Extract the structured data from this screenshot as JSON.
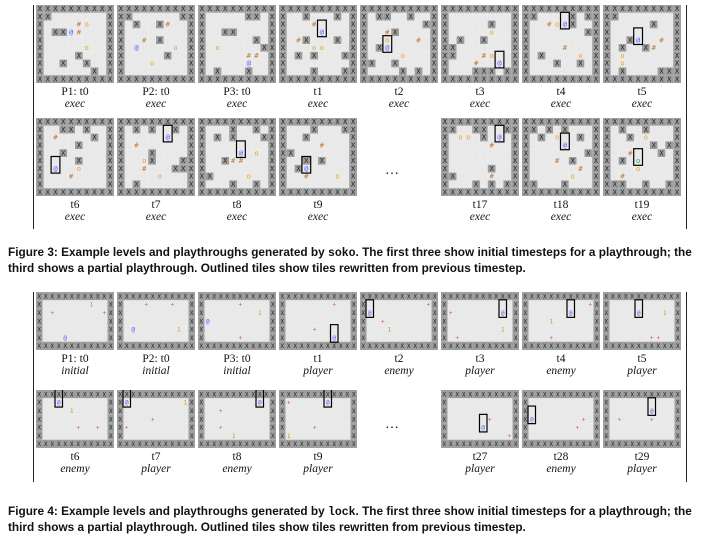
{
  "figures": [
    {
      "id": "fig3",
      "panels": [
        {
          "t": "P1: t0",
          "m": "exec"
        },
        {
          "t": "P2: t0",
          "m": "exec"
        },
        {
          "t": "P3: t0",
          "m": "exec"
        },
        {
          "t": "t1",
          "m": "exec"
        },
        {
          "t": "t2",
          "m": "exec"
        },
        {
          "t": "t3",
          "m": "exec"
        },
        {
          "t": "t4",
          "m": "exec"
        },
        {
          "t": "t5",
          "m": "exec"
        },
        {
          "t": "t6",
          "m": "exec"
        },
        {
          "t": "t7",
          "m": "exec"
        },
        {
          "t": "t8",
          "m": "exec"
        },
        {
          "t": "t9",
          "m": "exec"
        },
        {
          "t": "t17",
          "m": "exec"
        },
        {
          "t": "t18",
          "m": "exec"
        },
        {
          "t": "t19",
          "m": "exec"
        }
      ],
      "ellipsis": "…",
      "caption": {
        "label": "Figure 3:",
        "before": " Example levels and playthroughs generated by ",
        "code": "soko",
        "after": ". The first three show initial timesteps for a playthrough; the third shows a partial playthrough. Outlined tiles show tiles rewritten from previous timestep."
      }
    },
    {
      "id": "fig4",
      "panels": [
        {
          "t": "P1: t0",
          "m": "initial"
        },
        {
          "t": "P2: t0",
          "m": "initial"
        },
        {
          "t": "P3: t0",
          "m": "initial"
        },
        {
          "t": "t1",
          "m": "player"
        },
        {
          "t": "t2",
          "m": "enemy"
        },
        {
          "t": "t3",
          "m": "player"
        },
        {
          "t": "t4",
          "m": "enemy"
        },
        {
          "t": "t5",
          "m": "player"
        },
        {
          "t": "t6",
          "m": "enemy"
        },
        {
          "t": "t7",
          "m": "player"
        },
        {
          "t": "t8",
          "m": "enemy"
        },
        {
          "t": "t9",
          "m": "player"
        },
        {
          "t": "t27",
          "m": "player"
        },
        {
          "t": "t28",
          "m": "enemy"
        },
        {
          "t": "t29",
          "m": "player"
        }
      ],
      "ellipsis": "…",
      "caption": {
        "label": "Figure 4:",
        "before": " Example levels and playthroughs generated by ",
        "code": "lock",
        "after": ". The first three show initial timesteps for a playthrough; the third shows a partial playthrough. Outlined tiles show tiles rewritten from previous timestep."
      }
    }
  ],
  "tile_glyphs": {
    "wall": "X",
    "crate": "#",
    "goal": "o",
    "player": "@",
    "placed": "o",
    "key": "+",
    "enemy": "1"
  },
  "colors": {
    "wall_bg": "#9e9e9e",
    "floor_bg": "#e9e9e9",
    "crate": "#c07a3a",
    "goal": "#f0a020",
    "player": "#4a5cff",
    "placed": "#22aa33",
    "key": "#e05050",
    "enemy": "#e08a20",
    "outline": "#000000"
  }
}
